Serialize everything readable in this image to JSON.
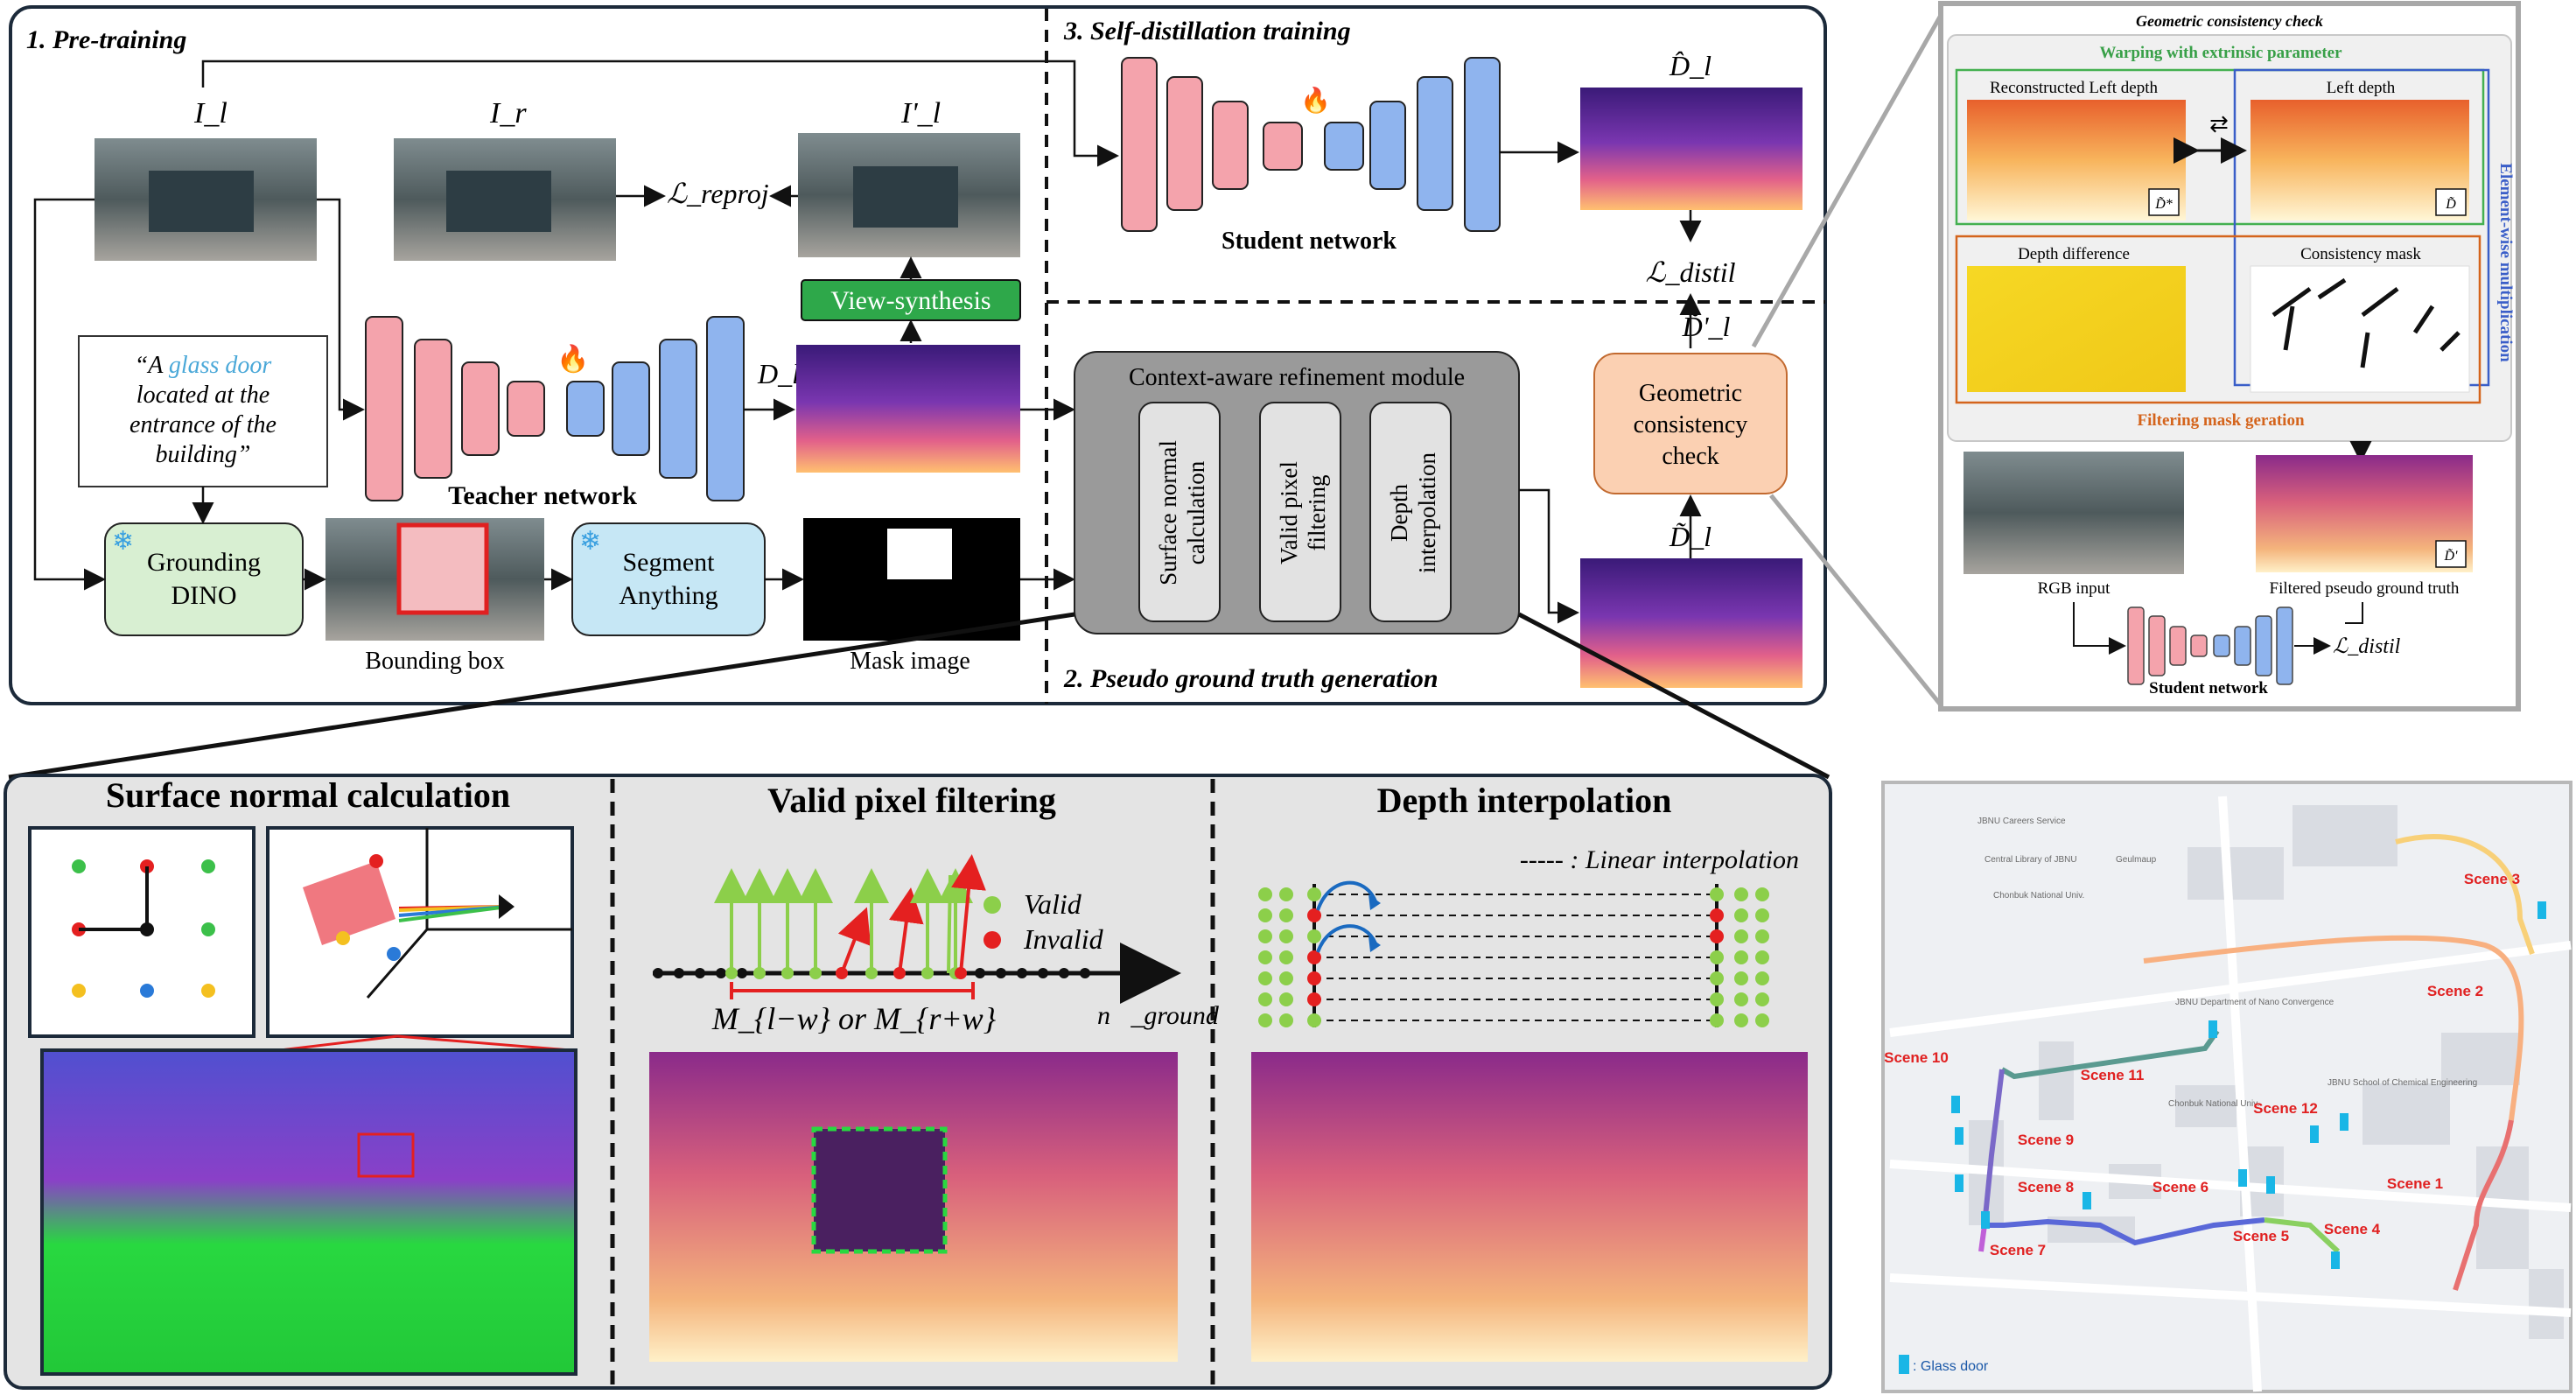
{
  "pretraining": {
    "title": "1. Pre-training",
    "img_left_label": "I_l",
    "img_right_label": "I_r",
    "img_synth_label": "I'_l",
    "loss_reproj": "ℒ_reproj",
    "view_synthesis": "View-synthesis",
    "prompt_text": [
      "“A ",
      "glass door",
      " located at the entrance of the building”"
    ],
    "grounding": "Grounding DINO",
    "segment": "Segment Anything",
    "bbox_caption": "Bounding box",
    "mask_caption": "Mask image",
    "teacher": "Teacher network",
    "depth_label": "D_l"
  },
  "distillation": {
    "title": "3. Self-distillation training",
    "student": "Student network",
    "depth_hat_label": "D̂_l",
    "loss_distil": "ℒ_distil",
    "depth_tilde_prime_label": "D̃'_l"
  },
  "pseudo_gt": {
    "title": "2. Pseudo ground truth generation",
    "module_title": "Context-aware refinement module",
    "steps": [
      "Surface normal calculation",
      "Valid pixel filtering",
      "Depth interpolation"
    ],
    "geometric_check": "Geometric consistency check",
    "depth_tilde_label": "D̃_l"
  },
  "geo_panel": {
    "title": "Geometric consistency check",
    "warping": "Warping with extrinsic parameter",
    "recon_left": "Reconstructed Left depth",
    "left_depth": "Left depth",
    "element_wise": "Element-wise multiplication",
    "depth_diff": "Depth difference",
    "consistency_mask": "Consistency mask",
    "filtering": "Filtering mask geration",
    "rgb_input": "RGB input",
    "filtered_gt": "Filtered pseudo ground truth",
    "student": "Student network",
    "loss": "ℒ_distil",
    "d_star": "D̃*",
    "d_tilde": "D̃",
    "d_prime": "D̃'"
  },
  "bottom": {
    "surface_title": "Surface normal calculation",
    "valid_title": "Valid pixel filtering",
    "interp_title": "Depth interpolation",
    "legend_valid": "Valid",
    "legend_invalid": "Invalid",
    "mask_formula": "M_{l−w} or M_{r+w}",
    "ground_vec": "n⃗_ground",
    "linear_interp": "----- : Linear interpolation"
  },
  "map": {
    "scenes": [
      {
        "id": "1",
        "label": "Scene 1"
      },
      {
        "id": "2",
        "label": "Scene 2"
      },
      {
        "id": "3",
        "label": "Scene 3"
      },
      {
        "id": "4",
        "label": "Scene 4"
      },
      {
        "id": "5",
        "label": "Scene 5"
      },
      {
        "id": "6",
        "label": "Scene 6"
      },
      {
        "id": "7",
        "label": "Scene 7"
      },
      {
        "id": "8",
        "label": "Scene 8"
      },
      {
        "id": "9",
        "label": "Scene 9"
      },
      {
        "id": "10",
        "label": "Scene 10"
      },
      {
        "id": "11",
        "label": "Scene 11"
      },
      {
        "id": "12",
        "label": "Scene 12"
      }
    ],
    "legend": ": Glass door",
    "places": [
      "JBNU Careers Service",
      "Central Library of JBNU",
      "Geulmaup",
      "Chonbuk National Univ.",
      "JBNU Department of Nano Convergence",
      "JBNU School of Chemical Engineering",
      "Chonbuk National Univ."
    ]
  },
  "colors": {
    "teacher": "#f4a3ac",
    "student_blue": "#8fb4ee",
    "view_synth": "#2ea84a",
    "grounding": "#d8efd2",
    "segment": "#c6e7f5",
    "geo_check": "#fbd0b2",
    "refine_module": "#9a9a9a",
    "scene_red": "#e02020",
    "glass_door": "#19b6e6"
  }
}
